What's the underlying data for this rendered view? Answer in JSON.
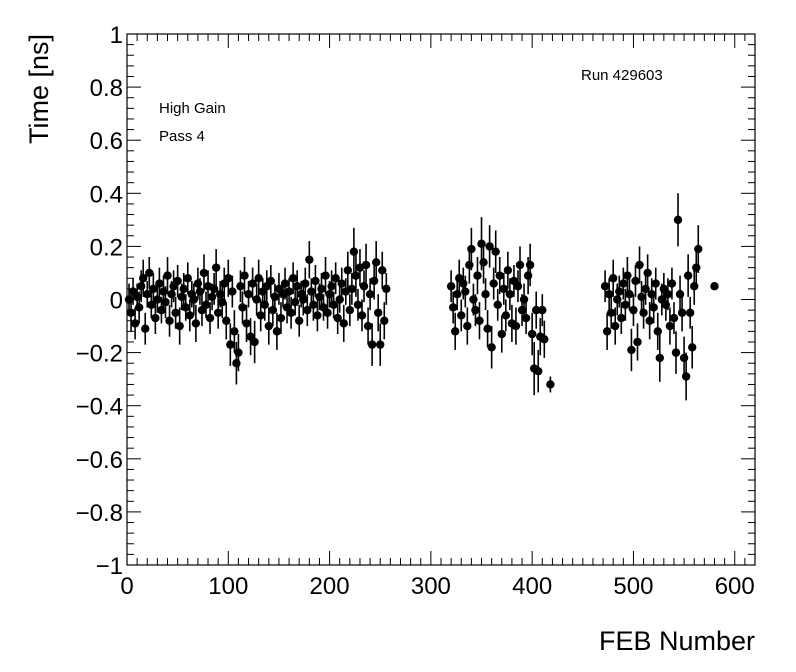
{
  "chart_data": {
    "type": "scatter",
    "xlabel": "FEB Number",
    "ylabel": "Time [ns]",
    "xlim": [
      0,
      620
    ],
    "ylim": [
      -1,
      1
    ],
    "x_ticks": [
      0,
      100,
      200,
      300,
      400,
      500,
      600
    ],
    "y_ticks": [
      -1,
      -0.8,
      -0.6,
      -0.4,
      -0.2,
      0,
      0.2,
      0.4,
      0.6,
      0.8,
      1
    ],
    "x_tick_labels": [
      "0",
      "100",
      "200",
      "300",
      "400",
      "500",
      "600"
    ],
    "y_tick_labels": [
      "−1",
      "−0.8",
      "−0.6",
      "−0.4",
      "−0.2",
      "0",
      "0.2",
      "0.4",
      "0.6",
      "0.8",
      "1"
    ],
    "grid": false,
    "legend": "none",
    "marker_color": "#000000",
    "annotations": {
      "run": "Run 429603",
      "gain": "High Gain",
      "pass": "Pass 4"
    },
    "points": [
      {
        "x": 2,
        "y": 0.0,
        "err": 0.06
      },
      {
        "x": 4,
        "y": -0.05,
        "err": 0.07
      },
      {
        "x": 6,
        "y": 0.03,
        "err": 0.05
      },
      {
        "x": 8,
        "y": -0.09,
        "err": 0.06
      },
      {
        "x": 10,
        "y": 0.01,
        "err": 0.05
      },
      {
        "x": 12,
        "y": -0.03,
        "err": 0.06
      },
      {
        "x": 14,
        "y": 0.05,
        "err": 0.06
      },
      {
        "x": 16,
        "y": 0.08,
        "err": 0.07
      },
      {
        "x": 18,
        "y": -0.11,
        "err": 0.06
      },
      {
        "x": 20,
        "y": 0.02,
        "err": 0.05
      },
      {
        "x": 22,
        "y": 0.1,
        "err": 0.06
      },
      {
        "x": 24,
        "y": -0.02,
        "err": 0.05
      },
      {
        "x": 26,
        "y": 0.04,
        "err": 0.06
      },
      {
        "x": 28,
        "y": -0.07,
        "err": 0.06
      },
      {
        "x": 30,
        "y": 0.0,
        "err": 0.05
      },
      {
        "x": 32,
        "y": 0.06,
        "err": 0.06
      },
      {
        "x": 34,
        "y": -0.04,
        "err": 0.05
      },
      {
        "x": 36,
        "y": 0.03,
        "err": 0.06
      },
      {
        "x": 38,
        "y": -0.01,
        "err": 0.06
      },
      {
        "x": 40,
        "y": 0.09,
        "err": 0.07
      },
      {
        "x": 42,
        "y": -0.08,
        "err": 0.06
      },
      {
        "x": 44,
        "y": 0.02,
        "err": 0.05
      },
      {
        "x": 46,
        "y": 0.05,
        "err": 0.06
      },
      {
        "x": 48,
        "y": -0.05,
        "err": 0.06
      },
      {
        "x": 50,
        "y": 0.07,
        "err": 0.06
      },
      {
        "x": 52,
        "y": -0.1,
        "err": 0.07
      },
      {
        "x": 54,
        "y": 0.01,
        "err": 0.05
      },
      {
        "x": 56,
        "y": 0.04,
        "err": 0.06
      },
      {
        "x": 58,
        "y": -0.03,
        "err": 0.05
      },
      {
        "x": 60,
        "y": 0.08,
        "err": 0.06
      },
      {
        "x": 62,
        "y": -0.06,
        "err": 0.06
      },
      {
        "x": 64,
        "y": 0.02,
        "err": 0.05
      },
      {
        "x": 66,
        "y": 0.0,
        "err": 0.06
      },
      {
        "x": 68,
        "y": -0.09,
        "err": 0.07
      },
      {
        "x": 70,
        "y": 0.06,
        "err": 0.06
      },
      {
        "x": 72,
        "y": 0.03,
        "err": 0.05
      },
      {
        "x": 74,
        "y": -0.04,
        "err": 0.06
      },
      {
        "x": 76,
        "y": 0.1,
        "err": 0.07
      },
      {
        "x": 78,
        "y": -0.02,
        "err": 0.05
      },
      {
        "x": 80,
        "y": 0.05,
        "err": 0.06
      },
      {
        "x": 82,
        "y": -0.07,
        "err": 0.06
      },
      {
        "x": 84,
        "y": 0.01,
        "err": 0.05
      },
      {
        "x": 86,
        "y": 0.04,
        "err": 0.06
      },
      {
        "x": 88,
        "y": 0.12,
        "err": 0.07
      },
      {
        "x": 90,
        "y": -0.05,
        "err": 0.06
      },
      {
        "x": 92,
        "y": 0.02,
        "err": 0.05
      },
      {
        "x": 94,
        "y": -0.01,
        "err": 0.06
      },
      {
        "x": 96,
        "y": 0.06,
        "err": 0.06
      },
      {
        "x": 98,
        "y": -0.08,
        "err": 0.07
      },
      {
        "x": 100,
        "y": 0.08,
        "err": 0.07
      },
      {
        "x": 102,
        "y": -0.17,
        "err": 0.08
      },
      {
        "x": 104,
        "y": 0.03,
        "err": 0.06
      },
      {
        "x": 106,
        "y": -0.12,
        "err": 0.08
      },
      {
        "x": 108,
        "y": -0.24,
        "err": 0.08
      },
      {
        "x": 110,
        "y": -0.2,
        "err": 0.07
      },
      {
        "x": 112,
        "y": 0.05,
        "err": 0.06
      },
      {
        "x": 114,
        "y": -0.03,
        "err": 0.06
      },
      {
        "x": 116,
        "y": 0.09,
        "err": 0.07
      },
      {
        "x": 118,
        "y": -0.09,
        "err": 0.07
      },
      {
        "x": 120,
        "y": 0.02,
        "err": 0.05
      },
      {
        "x": 122,
        "y": -0.14,
        "err": 0.07
      },
      {
        "x": 124,
        "y": 0.06,
        "err": 0.06
      },
      {
        "x": 126,
        "y": -0.16,
        "err": 0.08
      },
      {
        "x": 128,
        "y": 0.0,
        "err": 0.06
      },
      {
        "x": 130,
        "y": 0.08,
        "err": 0.07
      },
      {
        "x": 132,
        "y": -0.06,
        "err": 0.06
      },
      {
        "x": 134,
        "y": 0.03,
        "err": 0.05
      },
      {
        "x": 136,
        "y": -0.02,
        "err": 0.06
      },
      {
        "x": 138,
        "y": 0.05,
        "err": 0.06
      },
      {
        "x": 140,
        "y": -0.1,
        "err": 0.07
      },
      {
        "x": 142,
        "y": 0.07,
        "err": 0.06
      },
      {
        "x": 144,
        "y": -0.04,
        "err": 0.06
      },
      {
        "x": 146,
        "y": 0.01,
        "err": 0.05
      },
      {
        "x": 148,
        "y": -0.12,
        "err": 0.07
      },
      {
        "x": 150,
        "y": 0.04,
        "err": 0.06
      },
      {
        "x": 152,
        "y": -0.07,
        "err": 0.06
      },
      {
        "x": 154,
        "y": 0.02,
        "err": 0.05
      },
      {
        "x": 156,
        "y": 0.06,
        "err": 0.06
      },
      {
        "x": 158,
        "y": -0.03,
        "err": 0.06
      },
      {
        "x": 160,
        "y": 0.03,
        "err": 0.05
      },
      {
        "x": 162,
        "y": -0.05,
        "err": 0.06
      },
      {
        "x": 164,
        "y": 0.08,
        "err": 0.06
      },
      {
        "x": 166,
        "y": -0.01,
        "err": 0.05
      },
      {
        "x": 168,
        "y": 0.05,
        "err": 0.06
      },
      {
        "x": 170,
        "y": -0.08,
        "err": 0.06
      },
      {
        "x": 172,
        "y": 0.02,
        "err": 0.05
      },
      {
        "x": 174,
        "y": 0.0,
        "err": 0.06
      },
      {
        "x": 176,
        "y": 0.06,
        "err": 0.06
      },
      {
        "x": 178,
        "y": -0.04,
        "err": 0.06
      },
      {
        "x": 180,
        "y": 0.15,
        "err": 0.07
      },
      {
        "x": 182,
        "y": 0.03,
        "err": 0.05
      },
      {
        "x": 184,
        "y": -0.02,
        "err": 0.06
      },
      {
        "x": 186,
        "y": 0.07,
        "err": 0.06
      },
      {
        "x": 188,
        "y": -0.06,
        "err": 0.06
      },
      {
        "x": 190,
        "y": 0.01,
        "err": 0.05
      },
      {
        "x": 192,
        "y": 0.04,
        "err": 0.06
      },
      {
        "x": 194,
        "y": -0.03,
        "err": 0.05
      },
      {
        "x": 196,
        "y": 0.09,
        "err": 0.07
      },
      {
        "x": 198,
        "y": -0.05,
        "err": 0.06
      },
      {
        "x": 200,
        "y": 0.02,
        "err": 0.05
      },
      {
        "x": 202,
        "y": 0.05,
        "err": 0.06
      },
      {
        "x": 204,
        "y": -0.02,
        "err": 0.05
      },
      {
        "x": 206,
        "y": 0.08,
        "err": 0.06
      },
      {
        "x": 208,
        "y": -0.07,
        "err": 0.06
      },
      {
        "x": 210,
        "y": 0.0,
        "err": 0.05
      },
      {
        "x": 212,
        "y": 0.06,
        "err": 0.06
      },
      {
        "x": 214,
        "y": -0.09,
        "err": 0.07
      },
      {
        "x": 216,
        "y": 0.03,
        "err": 0.05
      },
      {
        "x": 218,
        "y": 0.11,
        "err": 0.07
      },
      {
        "x": 220,
        "y": -0.04,
        "err": 0.06
      },
      {
        "x": 222,
        "y": 0.04,
        "err": 0.06
      },
      {
        "x": 224,
        "y": 0.18,
        "err": 0.09
      },
      {
        "x": 226,
        "y": 0.09,
        "err": 0.08
      },
      {
        "x": 228,
        "y": -0.02,
        "err": 0.06
      },
      {
        "x": 230,
        "y": 0.12,
        "err": 0.07
      },
      {
        "x": 232,
        "y": -0.06,
        "err": 0.06
      },
      {
        "x": 234,
        "y": 0.05,
        "err": 0.06
      },
      {
        "x": 236,
        "y": 0.13,
        "err": 0.08
      },
      {
        "x": 238,
        "y": -0.1,
        "err": 0.07
      },
      {
        "x": 240,
        "y": 0.02,
        "err": 0.06
      },
      {
        "x": 242,
        "y": -0.17,
        "err": 0.08
      },
      {
        "x": 244,
        "y": 0.07,
        "err": 0.07
      },
      {
        "x": 246,
        "y": 0.14,
        "err": 0.08
      },
      {
        "x": 248,
        "y": -0.05,
        "err": 0.07
      },
      {
        "x": 250,
        "y": -0.17,
        "err": 0.08
      },
      {
        "x": 252,
        "y": 0.11,
        "err": 0.07
      },
      {
        "x": 254,
        "y": -0.08,
        "err": 0.07
      },
      {
        "x": 256,
        "y": 0.04,
        "err": 0.06
      },
      {
        "x": 320,
        "y": 0.05,
        "err": 0.06
      },
      {
        "x": 322,
        "y": -0.03,
        "err": 0.06
      },
      {
        "x": 324,
        "y": -0.12,
        "err": 0.07
      },
      {
        "x": 326,
        "y": 0.02,
        "err": 0.06
      },
      {
        "x": 328,
        "y": 0.08,
        "err": 0.07
      },
      {
        "x": 330,
        "y": -0.06,
        "err": 0.06
      },
      {
        "x": 332,
        "y": 0.06,
        "err": 0.06
      },
      {
        "x": 334,
        "y": 0.03,
        "err": 0.06
      },
      {
        "x": 336,
        "y": -0.1,
        "err": 0.07
      },
      {
        "x": 338,
        "y": 0.13,
        "err": 0.07
      },
      {
        "x": 340,
        "y": 0.19,
        "err": 0.08
      },
      {
        "x": 342,
        "y": 0.0,
        "err": 0.06
      },
      {
        "x": 344,
        "y": -0.04,
        "err": 0.06
      },
      {
        "x": 346,
        "y": 0.09,
        "err": 0.07
      },
      {
        "x": 348,
        "y": -0.08,
        "err": 0.07
      },
      {
        "x": 350,
        "y": 0.21,
        "err": 0.1
      },
      {
        "x": 352,
        "y": 0.14,
        "err": 0.08
      },
      {
        "x": 354,
        "y": 0.02,
        "err": 0.06
      },
      {
        "x": 356,
        "y": -0.11,
        "err": 0.07
      },
      {
        "x": 358,
        "y": 0.2,
        "err": 0.08
      },
      {
        "x": 360,
        "y": -0.18,
        "err": 0.08
      },
      {
        "x": 362,
        "y": 0.06,
        "err": 0.06
      },
      {
        "x": 364,
        "y": 0.18,
        "err": 0.08
      },
      {
        "x": 366,
        "y": -0.02,
        "err": 0.06
      },
      {
        "x": 368,
        "y": 0.09,
        "err": 0.07
      },
      {
        "x": 370,
        "y": -0.13,
        "err": 0.07
      },
      {
        "x": 372,
        "y": 0.04,
        "err": 0.06
      },
      {
        "x": 374,
        "y": -0.06,
        "err": 0.06
      },
      {
        "x": 376,
        "y": 0.11,
        "err": 0.07
      },
      {
        "x": 378,
        "y": 0.02,
        "err": 0.06
      },
      {
        "x": 380,
        "y": -0.09,
        "err": 0.07
      },
      {
        "x": 382,
        "y": 0.07,
        "err": 0.06
      },
      {
        "x": 384,
        "y": -0.1,
        "err": 0.07
      },
      {
        "x": 386,
        "y": 0.05,
        "err": 0.06
      },
      {
        "x": 388,
        "y": 0.13,
        "err": 0.07
      },
      {
        "x": 390,
        "y": -0.04,
        "err": 0.06
      },
      {
        "x": 392,
        "y": 0.0,
        "err": 0.06
      },
      {
        "x": 394,
        "y": -0.07,
        "err": 0.06
      },
      {
        "x": 396,
        "y": 0.09,
        "err": 0.07
      },
      {
        "x": 398,
        "y": 0.13,
        "err": 0.08
      },
      {
        "x": 400,
        "y": -0.13,
        "err": 0.08
      },
      {
        "x": 402,
        "y": -0.26,
        "err": 0.1
      },
      {
        "x": 404,
        "y": -0.04,
        "err": 0.07
      },
      {
        "x": 406,
        "y": -0.27,
        "err": 0.08
      },
      {
        "x": 408,
        "y": -0.14,
        "err": 0.07
      },
      {
        "x": 410,
        "y": -0.04,
        "err": 0.06
      },
      {
        "x": 412,
        "y": -0.15,
        "err": 0.07
      },
      {
        "x": 418,
        "y": -0.32,
        "err": 0.03
      },
      {
        "x": 472,
        "y": 0.05,
        "err": 0.06
      },
      {
        "x": 474,
        "y": -0.12,
        "err": 0.07
      },
      {
        "x": 476,
        "y": 0.02,
        "err": 0.06
      },
      {
        "x": 478,
        "y": -0.05,
        "err": 0.06
      },
      {
        "x": 480,
        "y": 0.08,
        "err": 0.07
      },
      {
        "x": 482,
        "y": -0.1,
        "err": 0.07
      },
      {
        "x": 484,
        "y": 0.0,
        "err": 0.06
      },
      {
        "x": 486,
        "y": 0.03,
        "err": 0.06
      },
      {
        "x": 488,
        "y": -0.07,
        "err": 0.06
      },
      {
        "x": 490,
        "y": 0.06,
        "err": 0.06
      },
      {
        "x": 492,
        "y": -0.02,
        "err": 0.06
      },
      {
        "x": 494,
        "y": 0.09,
        "err": 0.07
      },
      {
        "x": 496,
        "y": 0.02,
        "err": 0.06
      },
      {
        "x": 498,
        "y": -0.19,
        "err": 0.08
      },
      {
        "x": 500,
        "y": -0.04,
        "err": 0.06
      },
      {
        "x": 502,
        "y": 0.07,
        "err": 0.06
      },
      {
        "x": 504,
        "y": -0.16,
        "err": 0.07
      },
      {
        "x": 506,
        "y": 0.13,
        "err": 0.07
      },
      {
        "x": 508,
        "y": 0.01,
        "err": 0.06
      },
      {
        "x": 510,
        "y": -0.05,
        "err": 0.06
      },
      {
        "x": 512,
        "y": 0.04,
        "err": 0.06
      },
      {
        "x": 514,
        "y": 0.1,
        "err": 0.07
      },
      {
        "x": 516,
        "y": -0.08,
        "err": 0.07
      },
      {
        "x": 518,
        "y": 0.02,
        "err": 0.06
      },
      {
        "x": 520,
        "y": -0.03,
        "err": 0.06
      },
      {
        "x": 522,
        "y": 0.06,
        "err": 0.06
      },
      {
        "x": 524,
        "y": -0.12,
        "err": 0.07
      },
      {
        "x": 526,
        "y": -0.22,
        "err": 0.09
      },
      {
        "x": 528,
        "y": 0.0,
        "err": 0.06
      },
      {
        "x": 530,
        "y": 0.04,
        "err": 0.06
      },
      {
        "x": 532,
        "y": -0.02,
        "err": 0.06
      },
      {
        "x": 534,
        "y": 0.02,
        "err": 0.06
      },
      {
        "x": 536,
        "y": -0.1,
        "err": 0.07
      },
      {
        "x": 538,
        "y": 0.06,
        "err": 0.06
      },
      {
        "x": 540,
        "y": -0.07,
        "err": 0.06
      },
      {
        "x": 542,
        "y": -0.2,
        "err": 0.08
      },
      {
        "x": 544,
        "y": 0.3,
        "err": 0.1
      },
      {
        "x": 546,
        "y": 0.02,
        "err": 0.07
      },
      {
        "x": 548,
        "y": -0.05,
        "err": 0.07
      },
      {
        "x": 550,
        "y": -0.22,
        "err": 0.08
      },
      {
        "x": 552,
        "y": -0.29,
        "err": 0.09
      },
      {
        "x": 554,
        "y": 0.09,
        "err": 0.08
      },
      {
        "x": 556,
        "y": -0.05,
        "err": 0.06
      },
      {
        "x": 558,
        "y": -0.18,
        "err": 0.08
      },
      {
        "x": 560,
        "y": 0.05,
        "err": 0.07
      },
      {
        "x": 562,
        "y": 0.12,
        "err": 0.08
      },
      {
        "x": 564,
        "y": 0.19,
        "err": 0.09
      },
      {
        "x": 580,
        "y": 0.05,
        "err": 0.01
      }
    ]
  }
}
